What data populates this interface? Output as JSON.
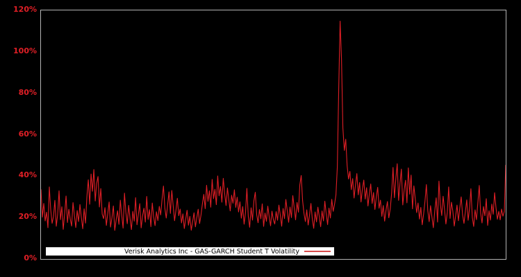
{
  "colors": {
    "background": "#000000",
    "plot_border": "#b5b5b5",
    "series_line": "#e01f26",
    "axis_label": "#e01f26",
    "legend_background": "#ffffff",
    "legend_text": "#000000"
  },
  "y_axis": {
    "tick_labels": [
      "0%",
      "20%",
      "40%",
      "60%",
      "80%",
      "100%",
      "120%"
    ]
  },
  "legend": {
    "label": "Verisk Analytics Inc - GAS-GARCH Student T Volatility"
  },
  "chart_data": {
    "type": "line",
    "title": "",
    "xlabel": "",
    "ylabel": "",
    "unit": "percent",
    "ylim": [
      0,
      120
    ],
    "yticks": [
      0,
      20,
      40,
      60,
      80,
      100,
      120
    ],
    "x_axis_labels_visible": false,
    "grid": false,
    "legend_position": "bottom-inside",
    "plot_background": "#000000",
    "series": [
      {
        "name": "Verisk Analytics Inc - GAS-GARCH Student T Volatility",
        "color": "#e01f26",
        "values": [
          33.5,
          20.2,
          26.8,
          18.4,
          22.6,
          15.1,
          34.8,
          23.9,
          17.2,
          20.5,
          28.3,
          15.8,
          21.4,
          32.9,
          19.0,
          25.2,
          14.3,
          22.1,
          30.4,
          17.6,
          24.0,
          19.3,
          15.9,
          27.2,
          21.0,
          15.2,
          23.4,
          18.1,
          26.3,
          20.0,
          14.6,
          24.2,
          17.3,
          30.1,
          38.2,
          26.4,
          41.0,
          32.7,
          43.2,
          28.0,
          36.5,
          39.8,
          25.1,
          34.0,
          21.7,
          19.5,
          24.8,
          16.2,
          21.9,
          27.5,
          15.4,
          20.1,
          25.6,
          13.8,
          18.9,
          23.3,
          16.7,
          28.4,
          21.2,
          14.9,
          31.8,
          22.5,
          17.0,
          25.9,
          19.6,
          14.2,
          23.0,
          18.3,
          29.6,
          16.5,
          21.6,
          26.7,
          15.0,
          20.8,
          24.5,
          17.8,
          30.2,
          19.1,
          23.8,
          15.6,
          27.0,
          20.3,
          16.1,
          22.8,
          18.6,
          25.4,
          21.3,
          28.9,
          35.2,
          24.6,
          19.8,
          26.1,
          32.4,
          22.0,
          33.1,
          25.7,
          18.5,
          23.6,
          29.3,
          20.9,
          24.1,
          17.4,
          21.8,
          14.7,
          19.2,
          23.5,
          16.3,
          20.6,
          13.9,
          18.0,
          22.3,
          15.5,
          19.9,
          24.0,
          17.1,
          21.1,
          26.5,
          31.2,
          24.3,
          35.6,
          27.8,
          32.9,
          25.0,
          38.4,
          29.1,
          33.7,
          26.2,
          40.1,
          30.5,
          35.0,
          27.4,
          38.9,
          31.6,
          25.8,
          34.3,
          28.6,
          23.2,
          30.8,
          26.9,
          33.4,
          24.9,
          29.8,
          22.7,
          27.6,
          19.7,
          25.3,
          16.8,
          22.4,
          34.1,
          20.7,
          15.3,
          24.7,
          18.8,
          28.1,
          32.2,
          21.5,
          17.5,
          23.9,
          19.4,
          26.6,
          15.7,
          22.2,
          18.2,
          25.5,
          20.4,
          16.0,
          23.1,
          19.0,
          16.9,
          22.9,
          18.7,
          26.0,
          21.2,
          15.8,
          24.4,
          19.5,
          28.7,
          23.3,
          17.7,
          25.1,
          20.0,
          30.6,
          24.8,
          18.9,
          27.3,
          22.6,
          35.8,
          40.3,
          28.2,
          22.0,
          18.1,
          23.7,
          16.4,
          21.3,
          26.8,
          19.2,
          14.8,
          22.7,
          17.9,
          25.0,
          20.5,
          15.6,
          23.2,
          18.4,
          27.9,
          21.8,
          16.6,
          24.6,
          19.8,
          28.8,
          23.0,
          26.4,
          30.9,
          44.5,
          82.0,
          114.8,
          96.5,
          63.2,
          52.4,
          57.8,
          45.1,
          38.6,
          42.3,
          33.5,
          38.8,
          29.4,
          35.7,
          41.2,
          31.0,
          36.9,
          27.5,
          33.8,
          38.1,
          28.9,
          34.4,
          25.6,
          31.5,
          36.2,
          26.8,
          32.1,
          23.9,
          29.9,
          34.6,
          24.5,
          28.4,
          20.6,
          25.8,
          18.3,
          23.5,
          27.7,
          19.9,
          24.3,
          31.9,
          44.2,
          29.6,
          38.7,
          46.0,
          28.3,
          36.4,
          43.4,
          26.1,
          33.2,
          38.0,
          27.1,
          44.0,
          31.3,
          40.5,
          24.2,
          35.3,
          29.0,
          22.4,
          27.0,
          19.3,
          24.9,
          16.5,
          21.7,
          28.0,
          35.9,
          23.4,
          18.0,
          25.7,
          20.2,
          15.1,
          23.0,
          29.5,
          17.8,
          37.6,
          26.3,
          21.0,
          30.3,
          24.0,
          16.9,
          22.5,
          34.8,
          19.6,
          27.4,
          23.1,
          15.9,
          20.8,
          26.0,
          18.5,
          24.7,
          30.0,
          21.4,
          17.2,
          22.8,
          28.5,
          18.7,
          24.4,
          33.9,
          20.1,
          15.7,
          23.7,
          19.0,
          27.2,
          35.5,
          22.1,
          17.4,
          25.3,
          20.9,
          29.1,
          16.2,
          23.3,
          18.8,
          26.5,
          21.6,
          32.0,
          24.8,
          19.2,
          23.0,
          18.9,
          24.1,
          20.7,
          22.9,
          45.3
        ]
      }
    ]
  }
}
